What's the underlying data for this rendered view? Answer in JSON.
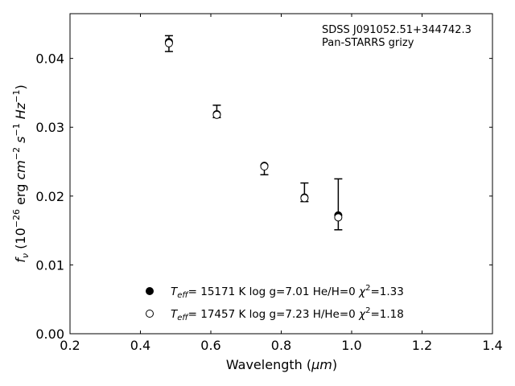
{
  "chart_data": {
    "type": "scatter",
    "xlabel_text": "Wavelength (",
    "xlabel_unit": "μm",
    "xlabel_close": ")",
    "ylabel_f": "f",
    "ylabel_sub": "ν",
    "ylabel_text1": " (10",
    "ylabel_exp1": "−26",
    "ylabel_text2": " erg ",
    "ylabel_cm": "cm",
    "ylabel_exp2": "−2",
    "ylabel_s": " s",
    "ylabel_exp3": "−1",
    "ylabel_hz": " Hz",
    "ylabel_exp4": "−1",
    "ylabel_close": ")",
    "xlim": [
      0.2,
      1.4
    ],
    "ylim": [
      0.0,
      0.0465
    ],
    "xticks": [
      0.2,
      0.4,
      0.6,
      0.8,
      1.0,
      1.2,
      1.4
    ],
    "xtick_labels": [
      "0.2",
      "0.4",
      "0.6",
      "0.8",
      "1.0",
      "1.2",
      "1.4"
    ],
    "yticks": [
      0.0,
      0.01,
      0.02,
      0.03,
      0.04
    ],
    "ytick_labels": [
      "0.00",
      "0.01",
      "0.02",
      "0.03",
      "0.04"
    ],
    "annotation": [
      "SDSS J091052.51+344742.3",
      "Pan-STARRS grizy"
    ],
    "observed": {
      "x": [
        0.481,
        0.617,
        0.752,
        0.866,
        0.962
      ],
      "y": [
        0.0421,
        0.0322,
        0.0241,
        0.0205,
        0.0188
      ],
      "yerr_low": [
        0.0011,
        0.0008,
        0.001,
        0.0013,
        0.0037
      ],
      "yerr_high": [
        0.0012,
        0.001,
        0.0004,
        0.0014,
        0.0037
      ]
    },
    "series": [
      {
        "marker": "filled",
        "x": [
          0.481,
          0.617,
          0.752,
          0.866,
          0.962
        ],
        "y": [
          0.0424,
          0.0319,
          0.0244,
          0.0198,
          0.0172
        ],
        "label_t": "T",
        "label_teff_sub": "eff",
        "label_rest": "= 15171 K  log g=7.01  He/H=0  ",
        "label_chi": "χ",
        "label_chi_exp": "2",
        "label_chi_val": "=1.33"
      },
      {
        "marker": "open",
        "x": [
          0.481,
          0.617,
          0.752,
          0.866,
          0.962
        ],
        "y": [
          0.0422,
          0.0318,
          0.0243,
          0.0197,
          0.0169
        ],
        "label_t": "T",
        "label_teff_sub": "eff",
        "label_rest": "= 17457 K  log g=7.23  H/He=0  ",
        "label_chi": "χ",
        "label_chi_exp": "2",
        "label_chi_val": "=1.18"
      }
    ],
    "legend_location": "lower-center",
    "grid": false
  }
}
